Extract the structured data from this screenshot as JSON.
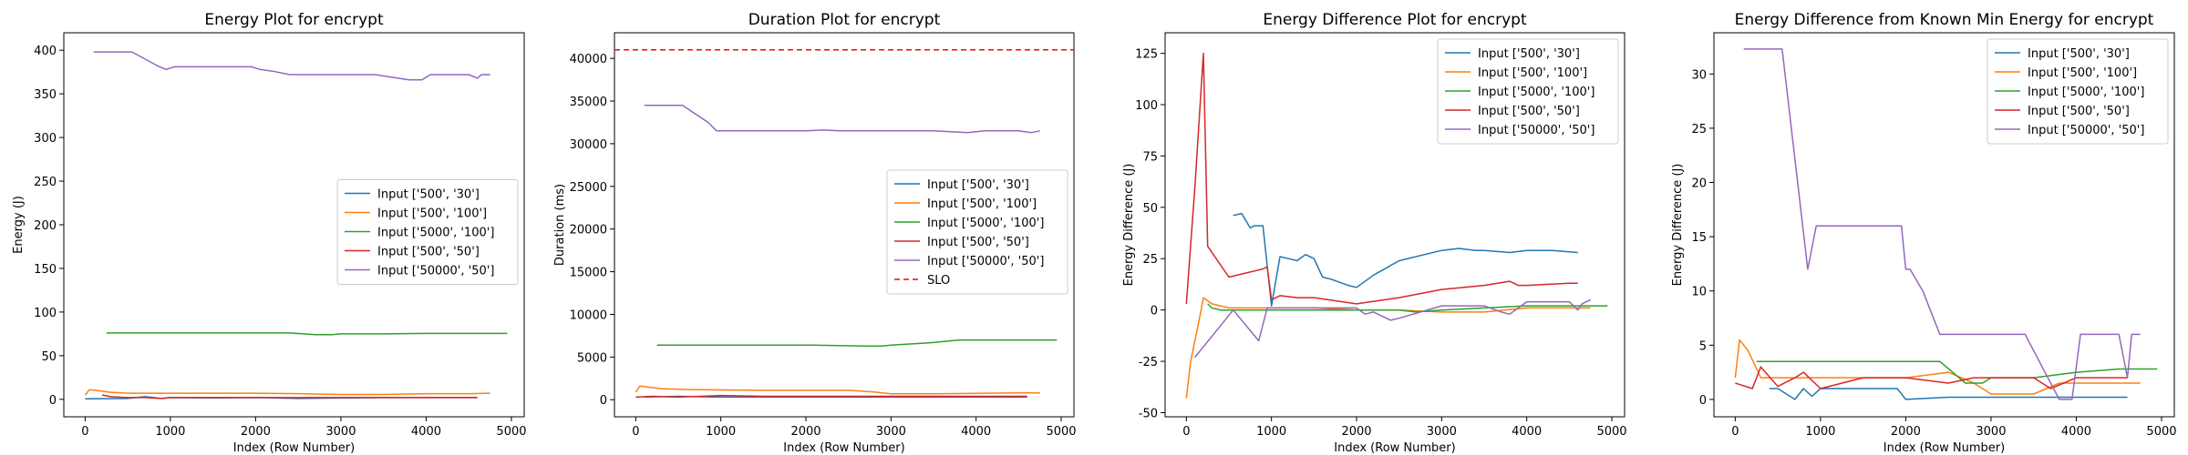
{
  "colors": {
    "c500_30": "#1f77b4",
    "c500_100": "#ff7f0e",
    "c5000_100": "#2ca02c",
    "c500_50": "#d62728",
    "c50000_50": "#9467bd",
    "slo": "#ff0000"
  },
  "chart_data": [
    {
      "type": "line",
      "title": "Energy Plot for encrypt",
      "xlabel": "Index (Row Number)",
      "ylabel": "Energy (J)",
      "xlim": [
        -250,
        5150
      ],
      "ylim": [
        -20,
        420
      ],
      "xticks": [
        0,
        1000,
        2000,
        3000,
        4000,
        5000
      ],
      "yticks": [
        0,
        50,
        100,
        150,
        200,
        250,
        300,
        350,
        400
      ],
      "legend_position": "center-right",
      "series": [
        {
          "name": "Input ['500', '30']",
          "color_key": "c500_30",
          "x": [
            0,
            500,
            700,
            900,
            1000,
            1500,
            2000,
            2500,
            3000,
            3500,
            4000,
            4600
          ],
          "y": [
            0.5,
            1,
            3,
            1,
            2,
            1.5,
            2,
            1,
            1.5,
            2,
            2,
            2
          ]
        },
        {
          "name": "Input ['500', '100']",
          "color_key": "c500_100",
          "x": [
            0,
            50,
            150,
            300,
            500,
            1000,
            1500,
            2000,
            2500,
            3000,
            3500,
            4000,
            4500,
            4750
          ],
          "y": [
            5,
            11,
            10,
            8,
            7,
            7,
            7,
            7,
            6.5,
            5.5,
            5.5,
            6.5,
            6.5,
            7
          ]
        },
        {
          "name": "Input ['5000', '100']",
          "color_key": "c5000_100",
          "x": [
            250,
            1000,
            2000,
            2400,
            2700,
            2900,
            3000,
            3500,
            4000,
            4500,
            4950
          ],
          "y": [
            76,
            76,
            76,
            76,
            74,
            74,
            75,
            75,
            75.5,
            75.5,
            75.5
          ]
        },
        {
          "name": "Input ['500', '50']",
          "color_key": "c500_50",
          "x": [
            200,
            300,
            500,
            700,
            900,
            1000,
            1500,
            2000,
            2500,
            3000,
            3500,
            4000,
            4500,
            4600
          ],
          "y": [
            5,
            3,
            2,
            2,
            1,
            2,
            2,
            2,
            2,
            2,
            2,
            2,
            2,
            2
          ]
        },
        {
          "name": "Input ['50000', '50']",
          "color_key": "c50000_50",
          "x": [
            100,
            550,
            850,
            950,
            1050,
            1450,
            1950,
            2050,
            2200,
            2400,
            3000,
            3400,
            3600,
            3800,
            3950,
            4050,
            4500,
            4600,
            4650,
            4750
          ],
          "y": [
            398,
            398,
            382,
            378,
            381,
            381,
            381,
            378,
            376,
            372,
            372,
            372,
            369,
            366,
            366,
            372,
            372,
            368,
            372,
            372
          ]
        }
      ]
    },
    {
      "type": "line",
      "title": "Duration Plot for encrypt",
      "xlabel": "Index (Row Number)",
      "ylabel": "Duration (ms)",
      "xlim": [
        -250,
        5150
      ],
      "ylim": [
        -2000,
        43000
      ],
      "xticks": [
        0,
        1000,
        2000,
        3000,
        4000,
        5000
      ],
      "yticks": [
        0,
        5000,
        10000,
        15000,
        20000,
        25000,
        30000,
        35000,
        40000
      ],
      "legend_position": "center-right",
      "slo": {
        "name": "SLO",
        "value": 41000,
        "color_key": "slo"
      },
      "series": [
        {
          "name": "Input ['500', '30']",
          "color_key": "c500_30",
          "x": [
            100,
            500,
            1000,
            2000,
            3000,
            4000,
            4600
          ],
          "y": [
            300,
            400,
            300,
            300,
            300,
            300,
            300
          ]
        },
        {
          "name": "Input ['500', '100']",
          "color_key": "c500_100",
          "x": [
            0,
            50,
            300,
            600,
            1000,
            1500,
            2000,
            2500,
            2800,
            3000,
            3500,
            4000,
            4500,
            4750
          ],
          "y": [
            900,
            1600,
            1300,
            1200,
            1150,
            1100,
            1100,
            1100,
            900,
            700,
            700,
            750,
            800,
            800
          ]
        },
        {
          "name": "Input ['5000', '100']",
          "color_key": "c5000_100",
          "x": [
            250,
            1000,
            2000,
            2700,
            2900,
            3000,
            3500,
            3800,
            4000,
            4500,
            4950
          ],
          "y": [
            6400,
            6400,
            6400,
            6300,
            6300,
            6400,
            6700,
            7000,
            7000,
            7000,
            7000
          ]
        },
        {
          "name": "Input ['500', '50']",
          "color_key": "c500_50",
          "x": [
            0,
            200,
            500,
            1000,
            1500,
            2000,
            2500,
            3000,
            3500,
            4000,
            4600
          ],
          "y": [
            300,
            400,
            300,
            500,
            400,
            400,
            400,
            400,
            400,
            400,
            400
          ]
        },
        {
          "name": "Input ['50000', '50']",
          "color_key": "c50000_50",
          "x": [
            100,
            550,
            850,
            950,
            1500,
            2000,
            2200,
            2400,
            3000,
            3500,
            3900,
            4100,
            4500,
            4650,
            4750
          ],
          "y": [
            34500,
            34500,
            32500,
            31500,
            31500,
            31500,
            31600,
            31500,
            31500,
            31500,
            31300,
            31500,
            31500,
            31300,
            31500
          ]
        }
      ]
    },
    {
      "type": "line",
      "title": "Energy Difference Plot for encrypt",
      "xlabel": "Index (Row Number)",
      "ylabel": "Energy Difference (J)",
      "xlim": [
        -250,
        5150
      ],
      "ylim": [
        -52,
        135
      ],
      "xticks": [
        0,
        1000,
        2000,
        3000,
        4000,
        5000
      ],
      "yticks": [
        -50,
        -25,
        0,
        25,
        50,
        75,
        100,
        125
      ],
      "legend_position": "top-right",
      "series": [
        {
          "name": "Input ['500', '30']",
          "color_key": "c500_30",
          "x": [
            550,
            650,
            750,
            800,
            900,
            1000,
            1100,
            1200,
            1300,
            1400,
            1500,
            1600,
            1700,
            1900,
            2000,
            2200,
            2500,
            3000,
            3200,
            3400,
            3500,
            3800,
            4000,
            4300,
            4600
          ],
          "y": [
            46,
            47,
            40,
            41,
            41,
            2,
            26,
            25,
            24,
            27,
            25,
            16,
            15,
            12,
            11,
            17,
            24,
            29,
            30,
            29,
            29,
            28,
            29,
            29,
            28
          ]
        },
        {
          "name": "Input ['500', '100']",
          "color_key": "c500_100",
          "x": [
            0,
            50,
            150,
            200,
            300,
            500,
            1000,
            1500,
            2000,
            2500,
            3000,
            3500,
            4000,
            4500,
            4750
          ],
          "y": [
            -43,
            -25,
            -5,
            6,
            3,
            1,
            1,
            1,
            0,
            0,
            -1,
            -1,
            1,
            1,
            1
          ]
        },
        {
          "name": "Input ['5000', '100']",
          "color_key": "c5000_100",
          "x": [
            250,
            300,
            400,
            600,
            1000,
            2000,
            2500,
            2700,
            3000,
            3500,
            4000,
            4500,
            4950
          ],
          "y": [
            3,
            1,
            0,
            0,
            0,
            0,
            0,
            -1,
            0,
            1,
            2,
            2,
            2
          ]
        },
        {
          "name": "Input ['500', '50']",
          "color_key": "c500_50",
          "x": [
            0,
            100,
            200,
            250,
            500,
            700,
            800,
            900,
            950,
            1000,
            1100,
            1300,
            1500,
            2000,
            2500,
            3000,
            3500,
            3800,
            3900,
            4000,
            4500,
            4600
          ],
          "y": [
            3,
            60,
            125,
            31,
            16,
            18,
            19,
            20,
            21,
            5,
            7,
            6,
            6,
            3,
            6,
            10,
            12,
            14,
            12,
            12,
            13,
            13
          ]
        },
        {
          "name": "Input ['50000', '50']",
          "color_key": "c50000_50",
          "x": [
            100,
            550,
            850,
            950,
            1500,
            2000,
            2100,
            2200,
            2400,
            2500,
            3000,
            3500,
            3700,
            3800,
            4000,
            4050,
            4500,
            4600,
            4650,
            4750
          ],
          "y": [
            -23,
            0,
            -15,
            1,
            1,
            1,
            -2,
            -1,
            -5,
            -4,
            2,
            2,
            -1,
            -2,
            4,
            4,
            4,
            0,
            3,
            5
          ]
        }
      ]
    },
    {
      "type": "line",
      "title": "Energy Difference from Known Min Energy for encrypt",
      "xlabel": "Index (Row Number)",
      "ylabel": "Energy Difference (J)",
      "xlim": [
        -250,
        5150
      ],
      "ylim": [
        -1.6,
        33.8
      ],
      "xticks": [
        0,
        1000,
        2000,
        3000,
        4000,
        5000
      ],
      "yticks": [
        0,
        5,
        10,
        15,
        20,
        25,
        30
      ],
      "legend_position": "top-right",
      "series": [
        {
          "name": "Input ['500', '30']",
          "color_key": "c500_30",
          "x": [
            400,
            500,
            600,
            700,
            800,
            900,
            1000,
            1500,
            1900,
            2000,
            2500,
            3000,
            3500,
            4000,
            4600
          ],
          "y": [
            1,
            1,
            0.5,
            0,
            1,
            0.3,
            1,
            1,
            1,
            0,
            0.2,
            0.2,
            0.2,
            0.2,
            0.2
          ]
        },
        {
          "name": "Input ['500', '100']",
          "color_key": "c500_100",
          "x": [
            0,
            50,
            150,
            300,
            500,
            1000,
            1500,
            2000,
            2500,
            2800,
            3000,
            3500,
            3800,
            4000,
            4500,
            4750
          ],
          "y": [
            2,
            5.5,
            4.5,
            2,
            2,
            2,
            2,
            2,
            2.5,
            1.5,
            0.5,
            0.5,
            1.5,
            1.5,
            1.5,
            1.5
          ]
        },
        {
          "name": "Input ['5000', '100']",
          "color_key": "c5000_100",
          "x": [
            250,
            1000,
            2000,
            2400,
            2700,
            2900,
            3000,
            3500,
            4000,
            4500,
            4950
          ],
          "y": [
            3.5,
            3.5,
            3.5,
            3.5,
            1.5,
            1.5,
            2,
            2,
            2.5,
            2.8,
            2.8
          ]
        },
        {
          "name": "Input ['500', '50']",
          "color_key": "c500_50",
          "x": [
            0,
            200,
            300,
            500,
            700,
            800,
            1000,
            1500,
            2000,
            2500,
            2800,
            3000,
            3500,
            3700,
            4000,
            4500,
            4600
          ],
          "y": [
            1.5,
            1,
            3,
            1.2,
            2,
            2.5,
            1,
            2,
            2,
            1.5,
            2,
            2,
            2,
            1,
            2,
            2,
            2
          ]
        },
        {
          "name": "Input ['50000', '50']",
          "color_key": "c50000_50",
          "x": [
            100,
            550,
            850,
            950,
            1500,
            1950,
            2000,
            2050,
            2200,
            2400,
            3000,
            3400,
            3600,
            3800,
            3950,
            4050,
            4500,
            4600,
            4650,
            4750
          ],
          "y": [
            32.3,
            32.3,
            12,
            16,
            16,
            16,
            12,
            12,
            10,
            6,
            6,
            6,
            3,
            0,
            0,
            6,
            6,
            2,
            6,
            6
          ]
        }
      ]
    }
  ]
}
